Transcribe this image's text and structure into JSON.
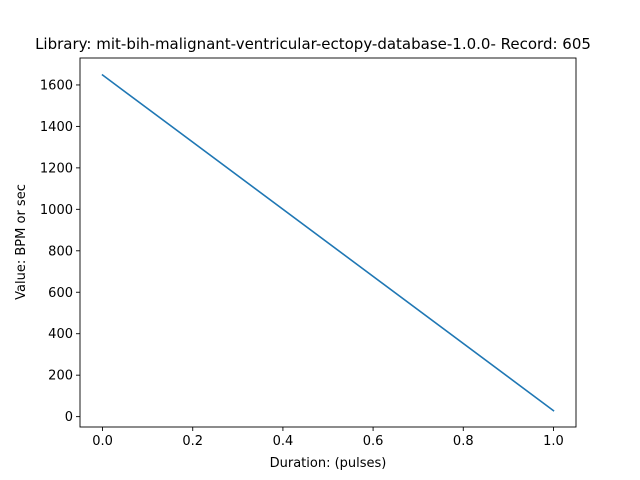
{
  "chart_data": {
    "type": "line",
    "title": "Library: mit-bih-malignant-ventricular-ectopy-database-1.0.0- Record: 605",
    "xlabel": "Duration: (pulses)",
    "ylabel": "Value: BPM or sec",
    "xlim": [
      -0.05,
      1.05
    ],
    "ylim": [
      -50,
      1730
    ],
    "xticks": [
      0.0,
      0.2,
      0.4,
      0.6,
      0.8,
      1.0
    ],
    "xtick_labels": [
      "0.0",
      "0.2",
      "0.4",
      "0.6",
      "0.8",
      "1.0"
    ],
    "yticks": [
      0,
      200,
      400,
      600,
      800,
      1000,
      1200,
      1400,
      1600
    ],
    "ytick_labels": [
      "0",
      "200",
      "400",
      "600",
      "800",
      "1000",
      "1200",
      "1400",
      "1600"
    ],
    "grid": false,
    "series": [
      {
        "color": "#1f77b4",
        "x": [
          0.0,
          1.0
        ],
        "y": [
          1648,
          29
        ]
      }
    ]
  }
}
